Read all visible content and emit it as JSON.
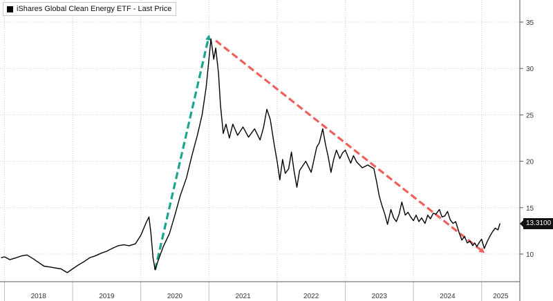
{
  "chart_data": {
    "type": "line",
    "title": "iShares Global Clean Energy ETF - Last Price",
    "xlabel": "",
    "ylabel": "",
    "x_ticks": [
      "2018",
      "2019",
      "2020",
      "2021",
      "2022",
      "2023",
      "2024",
      "2025"
    ],
    "y_ticks": [
      10,
      15,
      20,
      25,
      30,
      35
    ],
    "ylim": [
      7,
      37
    ],
    "xlim": [
      2017.95,
      2025.5
    ],
    "grid": true,
    "legend": "top-left",
    "last_value_label": "13.3100",
    "series": [
      {
        "name": "iShares Global Clean Energy ETF - Last Price",
        "color": "#000000",
        "points": [
          [
            2017.95,
            9.6
          ],
          [
            2018.0,
            9.7
          ],
          [
            2018.08,
            9.4
          ],
          [
            2018.17,
            9.6
          ],
          [
            2018.25,
            9.8
          ],
          [
            2018.33,
            9.9
          ],
          [
            2018.42,
            9.5
          ],
          [
            2018.5,
            9.1
          ],
          [
            2018.58,
            8.7
          ],
          [
            2018.67,
            8.6
          ],
          [
            2018.75,
            8.5
          ],
          [
            2018.83,
            8.4
          ],
          [
            2018.92,
            8.0
          ],
          [
            2019.0,
            8.4
          ],
          [
            2019.08,
            8.8
          ],
          [
            2019.17,
            9.2
          ],
          [
            2019.25,
            9.6
          ],
          [
            2019.33,
            9.8
          ],
          [
            2019.42,
            10.1
          ],
          [
            2019.5,
            10.3
          ],
          [
            2019.58,
            10.6
          ],
          [
            2019.67,
            10.9
          ],
          [
            2019.75,
            11.0
          ],
          [
            2019.83,
            10.9
          ],
          [
            2019.92,
            11.1
          ],
          [
            2020.0,
            12.0
          ],
          [
            2020.08,
            13.4
          ],
          [
            2020.12,
            14.0
          ],
          [
            2020.15,
            12.2
          ],
          [
            2020.18,
            9.6
          ],
          [
            2020.21,
            8.3
          ],
          [
            2020.25,
            9.2
          ],
          [
            2020.33,
            10.8
          ],
          [
            2020.42,
            12.2
          ],
          [
            2020.5,
            14.2
          ],
          [
            2020.58,
            16.3
          ],
          [
            2020.67,
            18.2
          ],
          [
            2020.75,
            20.6
          ],
          [
            2020.83,
            22.8
          ],
          [
            2020.9,
            25.0
          ],
          [
            2020.96,
            28.0
          ],
          [
            2021.03,
            33.2
          ],
          [
            2021.07,
            31.0
          ],
          [
            2021.1,
            32.2
          ],
          [
            2021.14,
            29.5
          ],
          [
            2021.17,
            26.0
          ],
          [
            2021.21,
            23.0
          ],
          [
            2021.25,
            24.0
          ],
          [
            2021.3,
            22.5
          ],
          [
            2021.35,
            24.0
          ],
          [
            2021.42,
            22.8
          ],
          [
            2021.5,
            23.7
          ],
          [
            2021.58,
            22.6
          ],
          [
            2021.67,
            23.5
          ],
          [
            2021.75,
            22.3
          ],
          [
            2021.8,
            23.6
          ],
          [
            2021.85,
            25.6
          ],
          [
            2021.9,
            24.5
          ],
          [
            2021.96,
            21.7
          ],
          [
            2022.0,
            20.0
          ],
          [
            2022.04,
            18.0
          ],
          [
            2022.08,
            20.2
          ],
          [
            2022.12,
            18.7
          ],
          [
            2022.17,
            19.2
          ],
          [
            2022.21,
            21.0
          ],
          [
            2022.25,
            18.9
          ],
          [
            2022.29,
            17.2
          ],
          [
            2022.33,
            19.0
          ],
          [
            2022.42,
            20.0
          ],
          [
            2022.5,
            18.8
          ],
          [
            2022.58,
            21.5
          ],
          [
            2022.62,
            22.0
          ],
          [
            2022.67,
            23.5
          ],
          [
            2022.71,
            21.8
          ],
          [
            2022.75,
            20.5
          ],
          [
            2022.79,
            18.8
          ],
          [
            2022.83,
            20.2
          ],
          [
            2022.87,
            21.2
          ],
          [
            2022.92,
            20.3
          ],
          [
            2022.96,
            20.9
          ],
          [
            2023.0,
            21.2
          ],
          [
            2023.04,
            20.5
          ],
          [
            2023.08,
            19.8
          ],
          [
            2023.12,
            20.6
          ],
          [
            2023.17,
            19.9
          ],
          [
            2023.25,
            19.3
          ],
          [
            2023.33,
            19.6
          ],
          [
            2023.42,
            19.2
          ],
          [
            2023.46,
            17.8
          ],
          [
            2023.5,
            16.2
          ],
          [
            2023.54,
            15.2
          ],
          [
            2023.58,
            14.3
          ],
          [
            2023.62,
            13.2
          ],
          [
            2023.67,
            14.8
          ],
          [
            2023.71,
            13.9
          ],
          [
            2023.75,
            13.5
          ],
          [
            2023.79,
            14.3
          ],
          [
            2023.83,
            15.6
          ],
          [
            2023.88,
            14.2
          ],
          [
            2023.92,
            14.5
          ],
          [
            2023.96,
            14.0
          ],
          [
            2024.0,
            13.6
          ],
          [
            2024.04,
            14.2
          ],
          [
            2024.08,
            13.5
          ],
          [
            2024.12,
            13.9
          ],
          [
            2024.17,
            13.3
          ],
          [
            2024.21,
            14.2
          ],
          [
            2024.25,
            13.8
          ],
          [
            2024.29,
            14.4
          ],
          [
            2024.33,
            14.3
          ],
          [
            2024.38,
            14.8
          ],
          [
            2024.42,
            14.0
          ],
          [
            2024.46,
            14.1
          ],
          [
            2024.5,
            14.6
          ],
          [
            2024.54,
            13.7
          ],
          [
            2024.58,
            13.3
          ],
          [
            2024.62,
            13.5
          ],
          [
            2024.67,
            12.3
          ],
          [
            2024.71,
            11.5
          ],
          [
            2024.75,
            11.9
          ],
          [
            2024.79,
            11.2
          ],
          [
            2024.83,
            11.4
          ],
          [
            2024.87,
            10.9
          ],
          [
            2024.9,
            11.2
          ],
          [
            2024.93,
            10.8
          ],
          [
            2024.97,
            11.3
          ],
          [
            2025.0,
            11.6
          ],
          [
            2025.04,
            10.6
          ],
          [
            2025.08,
            11.3
          ],
          [
            2025.12,
            11.9
          ],
          [
            2025.16,
            12.4
          ],
          [
            2025.2,
            12.8
          ],
          [
            2025.24,
            12.6
          ],
          [
            2025.27,
            13.31
          ]
        ]
      }
    ],
    "annotations": [
      {
        "type": "arrow",
        "style": "dashed",
        "color": "#1aa38e",
        "from": [
          2020.21,
          8.3
        ],
        "to": [
          2021.0,
          33.5
        ]
      },
      {
        "type": "arrow",
        "style": "dashed",
        "color": "#f0605b",
        "from": [
          2021.1,
          33.0
        ],
        "to": [
          2025.03,
          10.2
        ]
      }
    ]
  }
}
